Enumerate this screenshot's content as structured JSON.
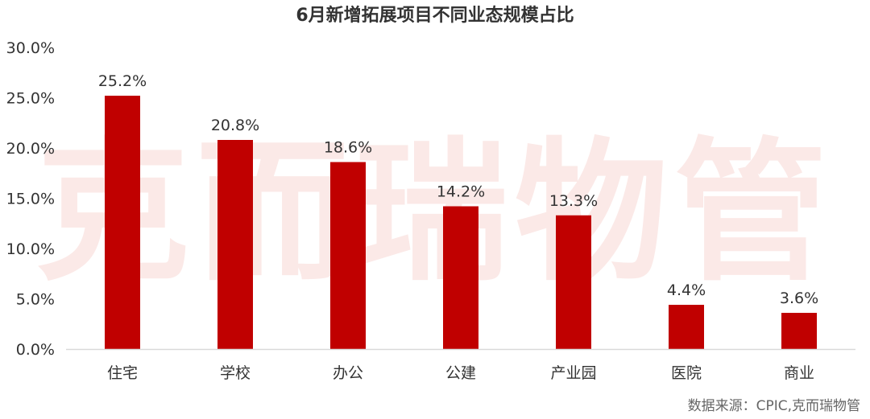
{
  "watermark": "克而瑞物管",
  "source": "数据来源：CPIC,克而瑞物管",
  "chart_data": {
    "type": "bar",
    "title": "6月新增拓展项目不同业态规模占比",
    "categories": [
      "住宅",
      "学校",
      "办公",
      "公建",
      "产业园",
      "医院",
      "商业"
    ],
    "values": [
      25.2,
      20.8,
      18.6,
      14.2,
      13.3,
      4.4,
      3.6
    ],
    "data_labels": [
      "25.2%",
      "20.8%",
      "18.6%",
      "14.2%",
      "13.3%",
      "4.4%",
      "3.6%"
    ],
    "ylim": [
      0,
      30
    ],
    "yticks": [
      "0.0%",
      "5.0%",
      "10.0%",
      "15.0%",
      "20.0%",
      "25.0%",
      "30.0%"
    ],
    "bar_color": "#c00000",
    "grid": false,
    "legend": "none"
  }
}
